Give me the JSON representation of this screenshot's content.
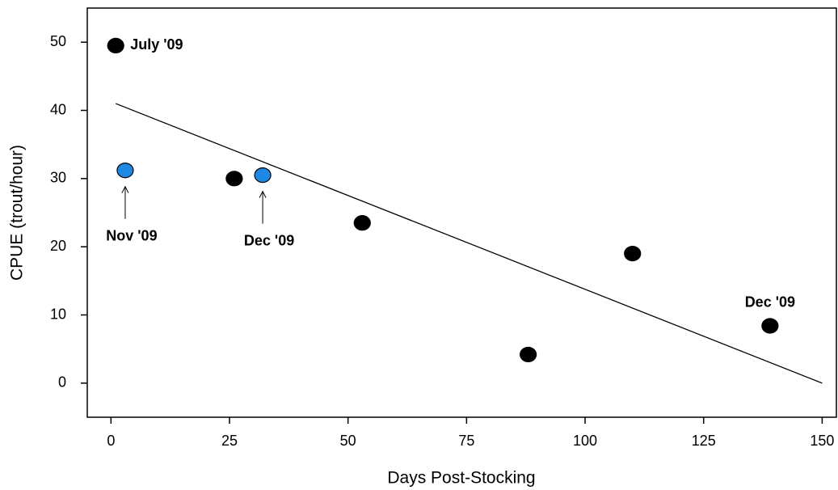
{
  "chart_data": {
    "type": "scatter",
    "x_label": "Days Post-Stocking",
    "y_label": "CPUE (trout/hour)",
    "series": [
      {
        "color": "#000000",
        "x": [
          1,
          26,
          53,
          88,
          110,
          139
        ],
        "values": [
          49.5,
          30,
          23.5,
          4.2,
          19,
          8.4
        ]
      },
      {
        "color": "#1e88e5",
        "x": [
          3,
          32
        ],
        "values": [
          31.2,
          30.5
        ]
      }
    ],
    "trend": {
      "x": [
        1,
        150
      ],
      "y": [
        41,
        0
      ],
      "color": "#000000"
    },
    "annotations": [
      {
        "text": "July '09",
        "color": "#000000"
      },
      {
        "text": "Nov '09",
        "color": "#1e88e5"
      },
      {
        "text": "Dec '09",
        "color": "#1e88e5"
      },
      {
        "text": "Dec '09",
        "color": "#000000"
      }
    ],
    "xlim": [
      -5,
      153
    ],
    "ylim": [
      -5,
      55
    ],
    "xticks": [
      0,
      25,
      50,
      75,
      100,
      125,
      150
    ],
    "yticks": [
      0,
      10,
      20,
      30,
      40,
      50
    ]
  }
}
